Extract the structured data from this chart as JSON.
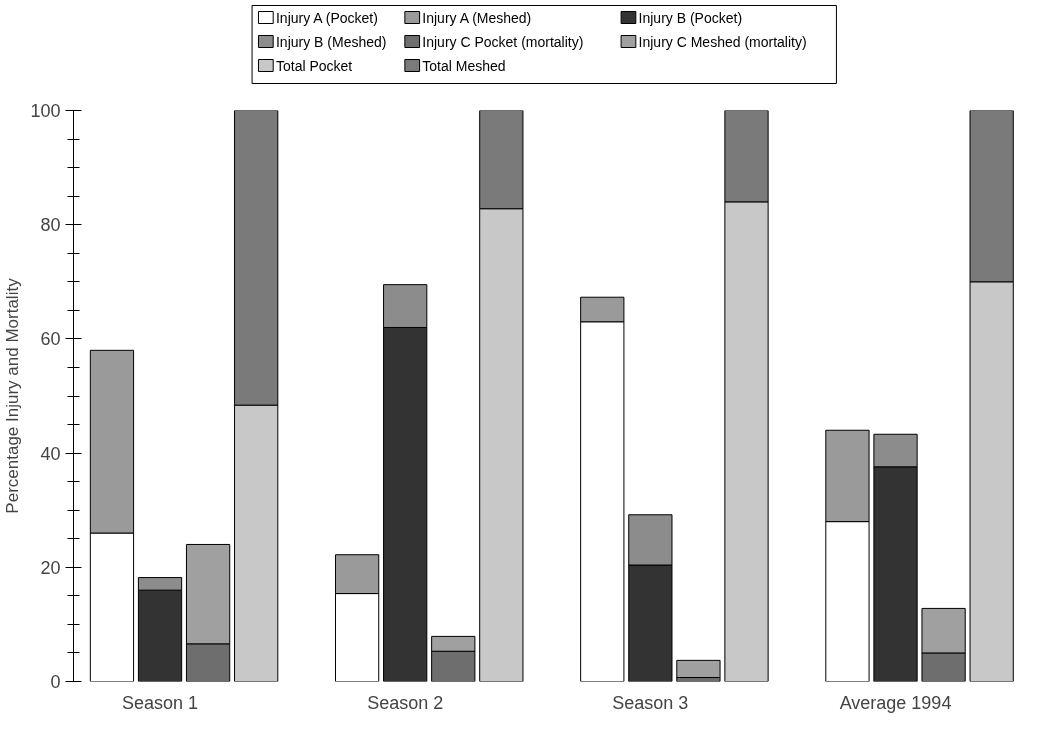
{
  "chart_data": {
    "type": "bar",
    "stacked": true,
    "ylabel": "Percentage Injury and Mortality",
    "categories": [
      null,
      "Season 1",
      null,
      null,
      null,
      "Season 2",
      null,
      null,
      null,
      "Season 3",
      null,
      null,
      null,
      "Average 1994",
      null,
      null
    ],
    "series": [
      {
        "name": "Injury A (Pocket)",
        "color": "#ffffff",
        "values": [
          26,
          null,
          null,
          null,
          15.4,
          null,
          null,
          null,
          63,
          null,
          null,
          null,
          28,
          null,
          null,
          null
        ]
      },
      {
        "name": "Injury A (Meshed)",
        "color": "#9a9a9a",
        "values": [
          32,
          null,
          null,
          null,
          6.8,
          null,
          null,
          null,
          4.3,
          null,
          null,
          null,
          16,
          null,
          null,
          null
        ]
      },
      {
        "name": "Injury B (Pocket)",
        "color": "#333333",
        "values": [
          null,
          16,
          null,
          null,
          null,
          62,
          null,
          null,
          null,
          20.4,
          null,
          null,
          null,
          37.6,
          null,
          null
        ]
      },
      {
        "name": "Injury B (Meshed)",
        "color": "#8c8c8c",
        "values": [
          null,
          2.2,
          null,
          null,
          null,
          7.5,
          null,
          null,
          null,
          8.8,
          null,
          null,
          null,
          5.7,
          null,
          null
        ]
      },
      {
        "name": "Injury C Pocket (mortality)",
        "color": "#6e6e6e",
        "values": [
          null,
          null,
          6.6,
          null,
          null,
          null,
          5.3,
          null,
          null,
          null,
          0.7,
          null,
          null,
          null,
          5,
          null
        ]
      },
      {
        "name": "Injury C Meshed (mortality)",
        "color": "#a0a0a0",
        "values": [
          null,
          null,
          17.4,
          null,
          null,
          null,
          2.6,
          null,
          null,
          null,
          3,
          null,
          null,
          null,
          7.8,
          null
        ]
      },
      {
        "name": "Total  Pocket",
        "color": "#c8c8c8",
        "values": [
          null,
          null,
          null,
          48.4,
          null,
          null,
          null,
          82.8,
          null,
          null,
          null,
          84,
          null,
          null,
          null,
          70
        ]
      },
      {
        "name": "Total Meshed",
        "color": "#7a7a7a",
        "values": [
          null,
          null,
          null,
          51.6,
          null,
          null,
          null,
          17.2,
          null,
          null,
          null,
          16,
          null,
          null,
          null,
          30
        ]
      }
    ],
    "ylim": [
      0,
      100
    ],
    "yticks": [
      0,
      20,
      40,
      60,
      80,
      100
    ],
    "grid": false,
    "legend": "top"
  }
}
